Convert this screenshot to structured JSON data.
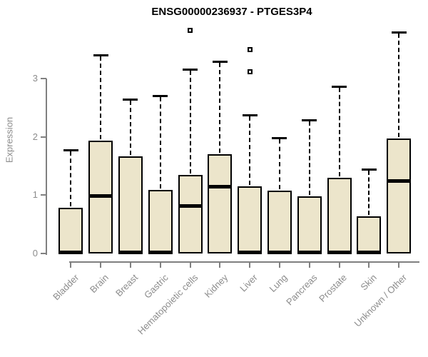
{
  "chart_data": {
    "type": "boxplot",
    "title": "ENSG00000236937 - PTGES3P4",
    "ylabel": "Expression",
    "xlabel": "",
    "ylim": [
      0,
      3.9
    ],
    "yticks": [
      0,
      1,
      2,
      3
    ],
    "grid": false,
    "legend": null,
    "categories": [
      "Bladder",
      "Brain",
      "Breast",
      "Gastric",
      "Hematopoietic cells",
      "Kidney",
      "Liver",
      "Lung",
      "Pancreas",
      "Prostate",
      "Skin",
      "Unknown / Other"
    ],
    "series": [
      {
        "category": "Bladder",
        "low": 0,
        "q1": 0,
        "median": 0.02,
        "q3": 0.78,
        "high": 1.77,
        "outliers": []
      },
      {
        "category": "Brain",
        "low": 0,
        "q1": 0,
        "median": 0.98,
        "q3": 1.94,
        "high": 3.4,
        "outliers": []
      },
      {
        "category": "Breast",
        "low": 0,
        "q1": 0,
        "median": 0.02,
        "q3": 1.66,
        "high": 2.64,
        "outliers": []
      },
      {
        "category": "Gastric",
        "low": 0,
        "q1": 0,
        "median": 0.02,
        "q3": 1.09,
        "high": 2.7,
        "outliers": []
      },
      {
        "category": "Hematopoietic cells",
        "low": 0,
        "q1": 0,
        "median": 0.81,
        "q3": 1.35,
        "high": 3.16,
        "outliers": [
          3.83
        ]
      },
      {
        "category": "Kidney",
        "low": 0,
        "q1": 0,
        "median": 1.15,
        "q3": 1.7,
        "high": 3.29,
        "outliers": []
      },
      {
        "category": "Liver",
        "low": 0,
        "q1": 0,
        "median": 0.02,
        "q3": 1.15,
        "high": 2.37,
        "outliers": [
          3.5,
          3.12
        ]
      },
      {
        "category": "Lung",
        "low": 0,
        "q1": 0,
        "median": 0.02,
        "q3": 1.08,
        "high": 1.98,
        "outliers": []
      },
      {
        "category": "Pancreas",
        "low": 0,
        "q1": 0,
        "median": 0.02,
        "q3": 0.98,
        "high": 2.29,
        "outliers": []
      },
      {
        "category": "Prostate",
        "low": 0,
        "q1": 0,
        "median": 0.02,
        "q3": 1.3,
        "high": 2.86,
        "outliers": []
      },
      {
        "category": "Skin",
        "low": 0,
        "q1": 0,
        "median": 0.02,
        "q3": 0.64,
        "high": 1.45,
        "outliers": []
      },
      {
        "category": "Unknown / Other",
        "low": 0,
        "q1": 0,
        "median": 1.24,
        "q3": 1.97,
        "high": 3.79,
        "outliers": []
      }
    ],
    "colors": {
      "box_fill": "#ECE5CB",
      "box_border": "#000000",
      "median": "#000000",
      "whisker": "#000000",
      "axis": "#808080",
      "tick_label": "#8c8c8c",
      "title": "#000000"
    }
  }
}
